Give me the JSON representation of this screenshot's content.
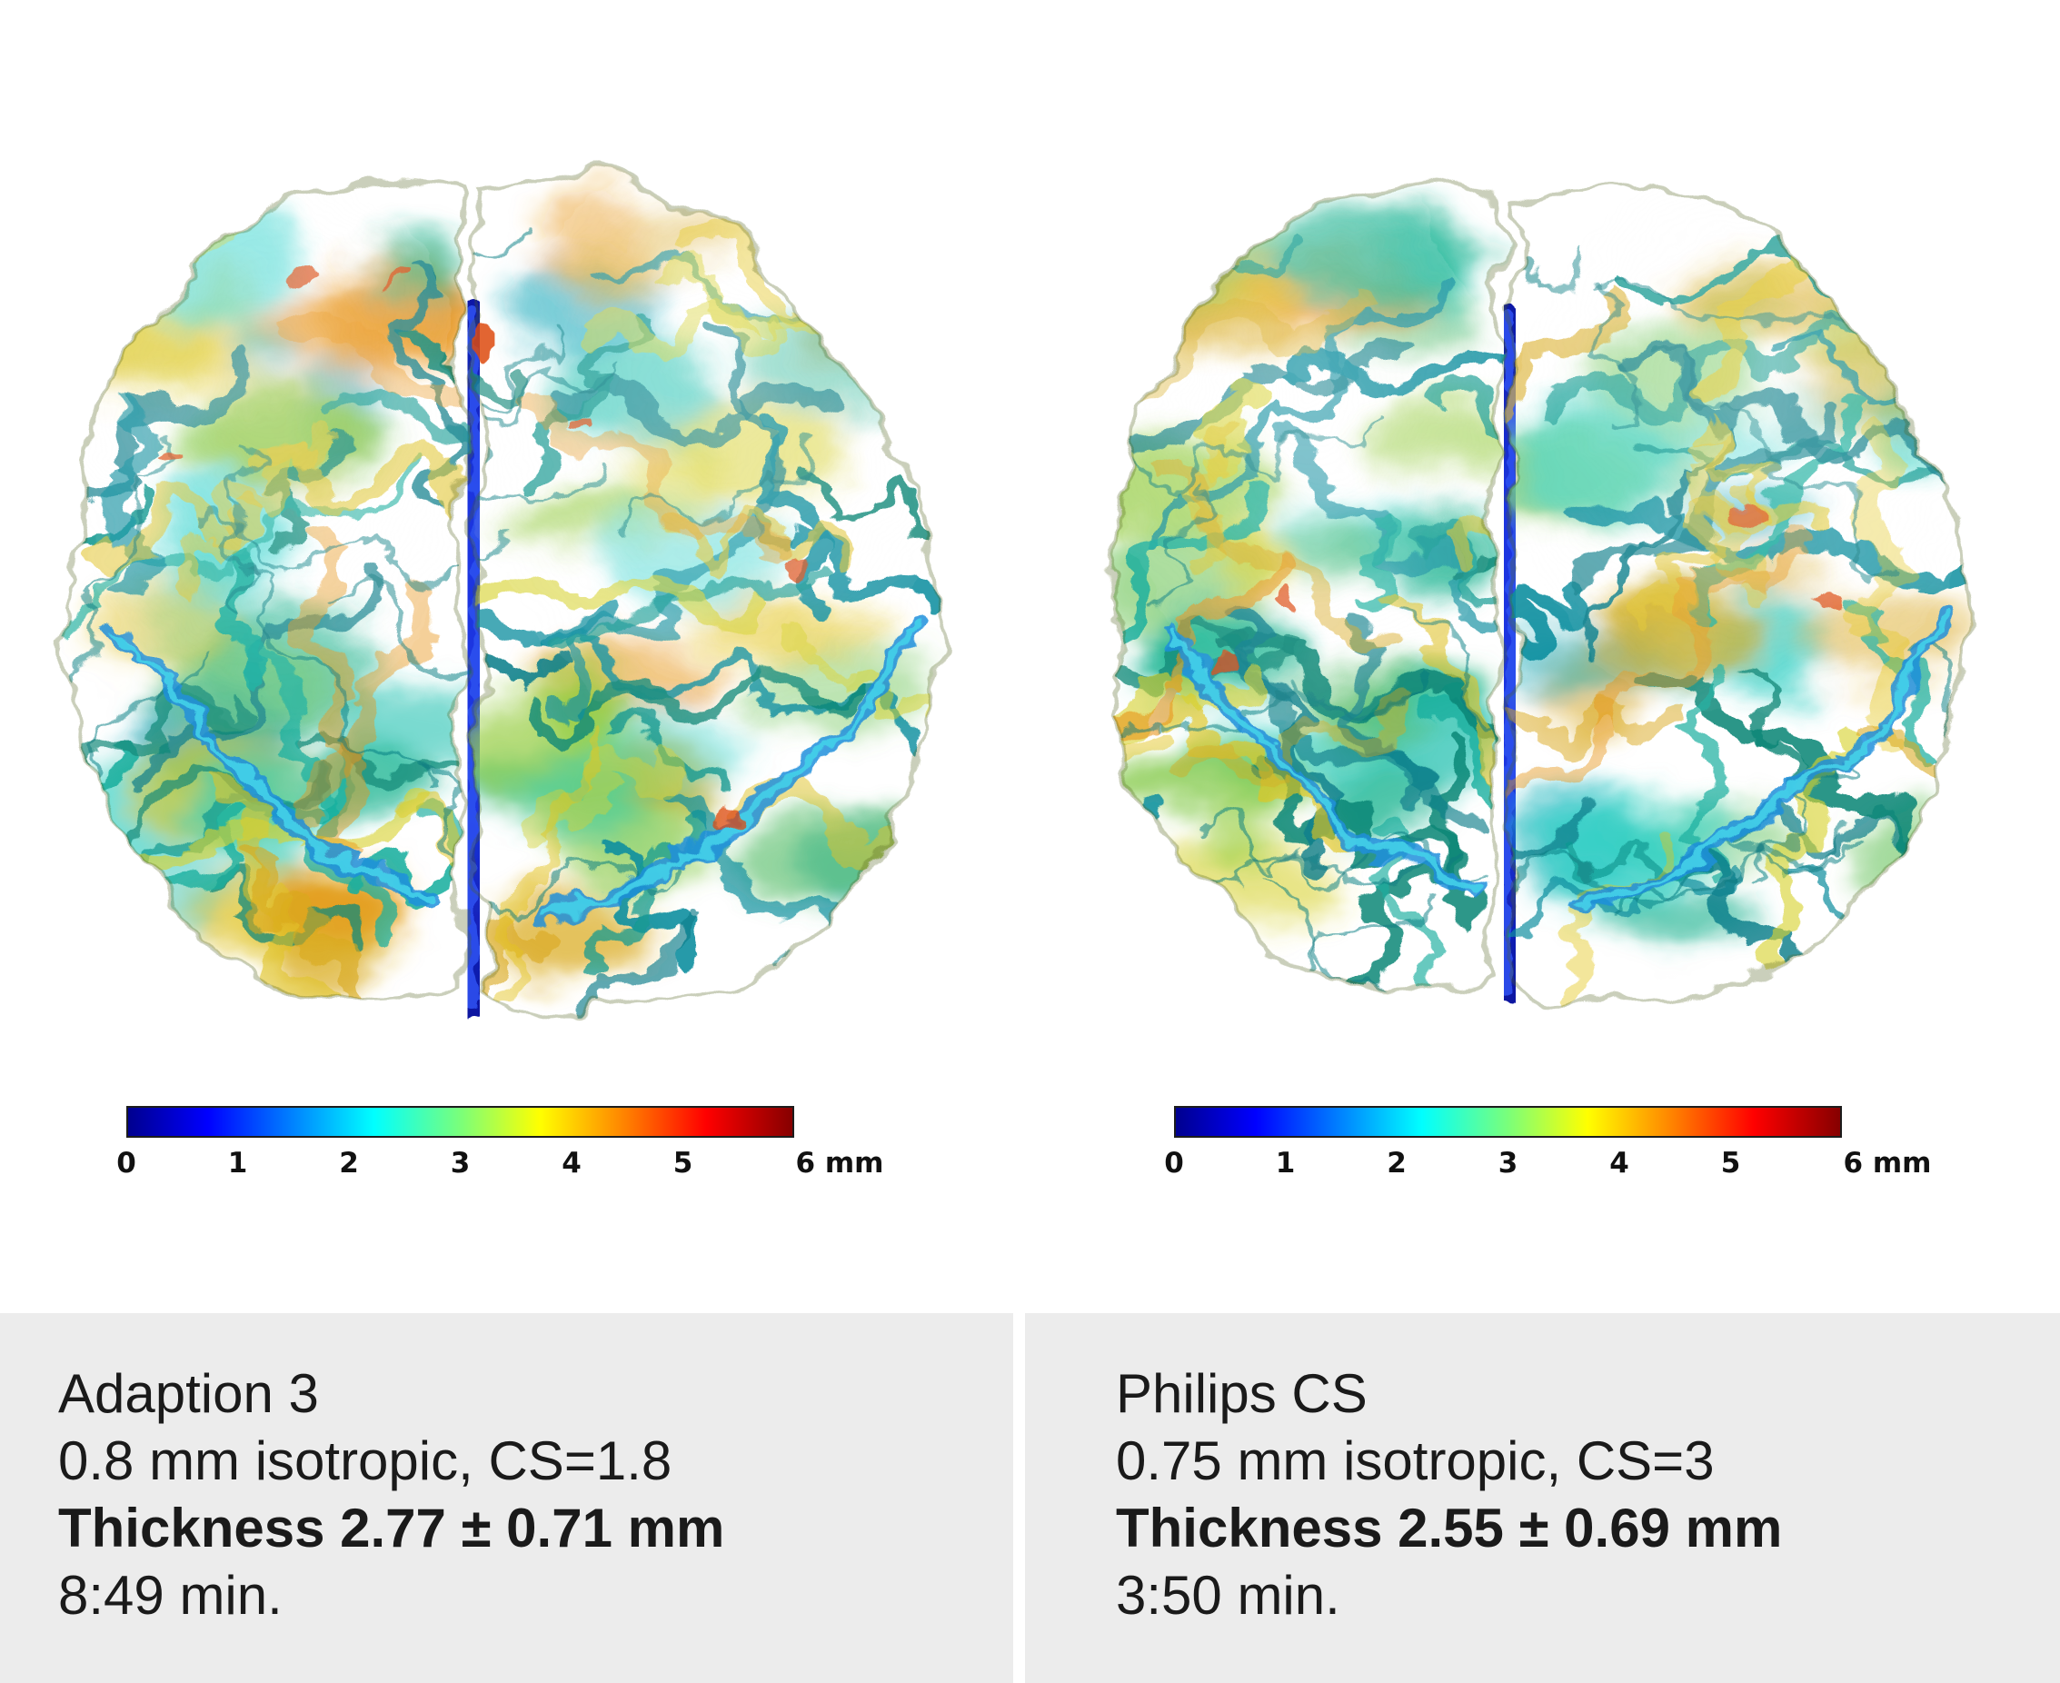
{
  "figure": {
    "panels": [
      {
        "id": "adaption3",
        "brain_alt": "cortical thickness map, superior view",
        "caption": {
          "title": "Adaption 3",
          "params": "0.8 mm isotropic, CS=1.8",
          "thickness": "Thickness 2.77 ± 0.71 mm",
          "duration": "8:49 min."
        },
        "colorbar": {
          "tick_labels": [
            "0",
            "1",
            "2",
            "3",
            "4",
            "5"
          ],
          "end_label": "6 mm",
          "min": 0,
          "max": 6,
          "unit": "mm"
        }
      },
      {
        "id": "philips-cs",
        "brain_alt": "cortical thickness map, superior view",
        "caption": {
          "title": "Philips CS",
          "params": "0.75 mm isotropic, CS=3",
          "thickness": "Thickness 2.55 ± 0.69 mm",
          "duration": "3:50 min."
        },
        "colorbar": {
          "tick_labels": [
            "0",
            "1",
            "2",
            "3",
            "4",
            "5"
          ],
          "end_label": "6 mm",
          "min": 0,
          "max": 6,
          "unit": "mm"
        }
      }
    ],
    "colors": {
      "caption_bg": "#ececec",
      "caption_text": "#1a1a1a",
      "tick_text": "#111111",
      "colormap_name": "jet",
      "jet_stops": [
        "#00008f",
        "#0000ff",
        "#00ffff",
        "#7aff7a",
        "#ffff00",
        "#ff8000",
        "#ff0000",
        "#860000"
      ],
      "fissure_blue": "#1c35e0",
      "fissure_dark": "#0b16a0",
      "fissure_core": "#2c50ee",
      "brain_palette": {
        "base_top": "#86ca5e",
        "base_mid": "#62c47e",
        "base_bottom": "#52bc86",
        "cool": [
          "#25c2b2",
          "#2fd0c4",
          "#18a8b8",
          "#3fd6d0",
          "#22b694"
        ],
        "green": [
          "#6cc455",
          "#85ca4a",
          "#5bbf6e",
          "#99cf49",
          "#74c86a"
        ],
        "warm": [
          "#d8d231",
          "#e4c51f",
          "#d9a91e",
          "#e8951a",
          "#e0c32a"
        ],
        "sulci": [
          "#159a92",
          "#0f8fa0",
          "#1aaf9f",
          "#118878",
          "#0d7f8c"
        ],
        "accent_blue": "#1f8fdc",
        "accent_cyan": "#45d2ea",
        "accent_red": "#dd4a12"
      }
    },
    "chart_data": {
      "type": "heatmap",
      "description": "Superior-view cortical thickness surface maps comparing two MRI protocols",
      "colorbar": {
        "min": 0,
        "max": 6,
        "unit": "mm",
        "ticks": [
          0,
          1,
          2,
          3,
          4,
          5,
          6
        ],
        "colormap": "jet"
      },
      "series": [
        {
          "name": "Adaption 3",
          "resolution": "0.8 mm isotropic",
          "compressed_sense_factor": 1.8,
          "mean_thickness_mm": 2.77,
          "sd_thickness_mm": 0.71,
          "scan_time": "8:49 min."
        },
        {
          "name": "Philips CS",
          "resolution": "0.75 mm isotropic",
          "compressed_sense_factor": 3,
          "mean_thickness_mm": 2.55,
          "sd_thickness_mm": 0.69,
          "scan_time": "3:50 min."
        }
      ]
    }
  }
}
